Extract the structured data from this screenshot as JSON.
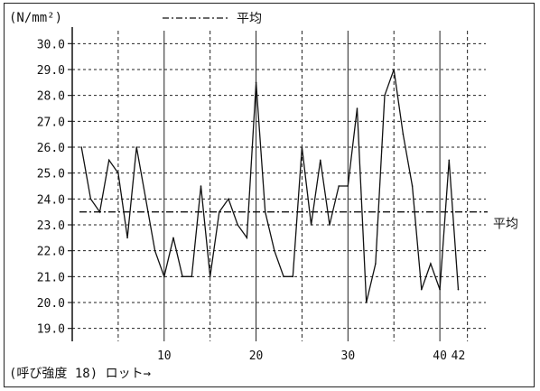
{
  "chart_data": {
    "type": "line",
    "unit_label": "(N/mm²)",
    "legend_label": "平均",
    "mean_label": "平均",
    "bottom_label": "(呼び強度 18) ロット→",
    "x_ticks": [
      "10",
      "20",
      "30",
      "40",
      "42"
    ],
    "x_tick_values": [
      10,
      20,
      30,
      40,
      42
    ],
    "xlim": [
      0,
      45
    ],
    "ylim": [
      18.5,
      30.5
    ],
    "y_ticks": [
      "19.0",
      "20.0",
      "21.0",
      "22.0",
      "23.0",
      "24.0",
      "25.0",
      "26.0",
      "27.0",
      "28.0",
      "29.0",
      "30.0"
    ],
    "y_tick_values": [
      19,
      20,
      21,
      22,
      23,
      24,
      25,
      26,
      27,
      28,
      29,
      30
    ],
    "solid_grid_x": [
      10,
      20,
      30,
      40
    ],
    "dashed_grid_x": [
      5,
      15,
      25,
      35,
      43
    ],
    "mean": 23.5,
    "series": [
      {
        "x": [
          1,
          2,
          3,
          4,
          5,
          6,
          7,
          8,
          9,
          10,
          11,
          12,
          13,
          14,
          15,
          16,
          17,
          18,
          19,
          20,
          21,
          22,
          23,
          24,
          25,
          26,
          27,
          28,
          29,
          30,
          31,
          32,
          33,
          34,
          35,
          36,
          37,
          38,
          39,
          40,
          41,
          42
        ],
        "values": [
          26.0,
          24.0,
          23.5,
          25.5,
          25.0,
          22.5,
          26.0,
          24.0,
          22.0,
          21.0,
          22.5,
          21.0,
          21.0,
          24.5,
          21.0,
          23.5,
          24.0,
          23.0,
          22.5,
          28.5,
          23.5,
          22.0,
          21.0,
          21.0,
          26.0,
          23.0,
          25.5,
          23.0,
          24.5,
          24.5,
          27.5,
          20.0,
          21.5,
          28.0,
          29.0,
          26.5,
          24.5,
          20.5,
          21.5,
          20.5,
          25.5,
          20.5
        ]
      }
    ],
    "colors": {
      "line": "#111111",
      "grid": "#222222"
    }
  }
}
